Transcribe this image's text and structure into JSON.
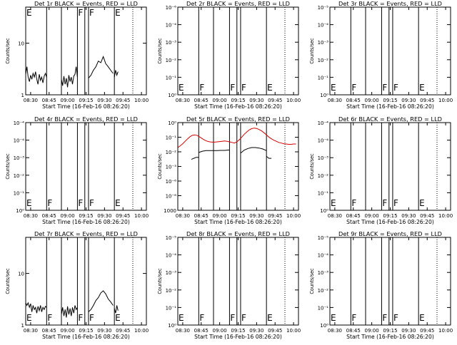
{
  "chart_data": [
    {
      "type": "line",
      "title": "Det 1r BLACK = Events, RED = LLD",
      "xlabel": "Start Time (16-Feb-16 08:26:20)",
      "ylabel": "Counts/sec",
      "xlim": [
        "08:26",
        "10:04"
      ],
      "x_ticks": [
        "08:30",
        "08:45",
        "09:00",
        "09:15",
        "09:30",
        "09:45",
        "10:00"
      ],
      "yscale": "log",
      "ylim": [
        1,
        50
      ],
      "y_ticks": [
        "1",
        "10"
      ],
      "vlines_solid": [
        "08:43",
        "08:55",
        "09:08",
        "09:14",
        "09:17",
        "09:38"
      ],
      "vlines_dotted": [
        "09:53"
      ],
      "markers": [
        {
          "label": "E",
          "x": "08:26"
        },
        {
          "label": "F",
          "x": "09:08"
        },
        {
          "label": "F",
          "x": "09:17"
        },
        {
          "label": "E",
          "x": "09:38"
        }
      ],
      "series": [
        {
          "color": "#000000",
          "x": [
            "08:26",
            "08:27",
            "08:28",
            "08:29",
            "08:30",
            "08:31",
            "08:32",
            "08:33",
            "08:34",
            "08:35",
            "08:36",
            "08:37",
            "08:38",
            "08:39",
            "08:40",
            "08:41",
            "08:42",
            "08:43"
          ],
          "y": [
            2.5,
            3.5,
            2.2,
            1.8,
            2.4,
            2,
            2.6,
            2.2,
            2.8,
            2,
            1.6,
            2.5,
            1.9,
            2.2,
            1.7,
            2.3,
            2.6,
            2.2
          ]
        },
        {
          "color": "#000000",
          "x": [
            "08:55",
            "08:56",
            "08:57",
            "08:58",
            "08:59",
            "09:00",
            "09:01",
            "09:02",
            "09:03",
            "09:04",
            "09:05",
            "09:06",
            "09:07",
            "09:08"
          ],
          "y": [
            2,
            1.5,
            2.3,
            1.6,
            2.1,
            1.4,
            2.4,
            1.8,
            2.2,
            1.6,
            2.3,
            2.5,
            3.5,
            2.2
          ]
        },
        {
          "color": "#000000",
          "x": [
            "09:17",
            "09:19",
            "09:21",
            "09:23",
            "09:25",
            "09:27",
            "09:29",
            "09:31",
            "09:33",
            "09:35",
            "09:37"
          ],
          "y": [
            2.1,
            2.4,
            3,
            3.5,
            4.5,
            4.2,
            5.5,
            4,
            3.5,
            3,
            2.6
          ]
        },
        {
          "color": "#000000",
          "x": [
            "09:38",
            "09:39",
            "09:40",
            "09:41"
          ],
          "y": [
            2.2,
            3,
            2.4,
            2.8
          ]
        }
      ]
    },
    {
      "type": "line",
      "title": "Det 2r BLACK = Events, RED = LLD",
      "xlabel": "Start Time (16-Feb-16 08:26:20)",
      "ylabel": "Counts/sec",
      "xlim": [
        "08:26",
        "10:04"
      ],
      "x_ticks": [
        "08:30",
        "08:45",
        "09:00",
        "09:15",
        "09:30",
        "09:45",
        "10:00"
      ],
      "yscale": "log",
      "ylim": [
        1,
        100000
      ],
      "y_ticks": [
        "10⁰",
        "10⁻¹",
        "10⁻²",
        "10⁻³",
        "10⁻⁴",
        "10⁻⁶"
      ],
      "vlines_solid": [
        "08:43",
        "08:55",
        "09:08",
        "09:14",
        "09:17",
        "09:38"
      ],
      "vlines_dotted": [
        "09:53"
      ],
      "markers": [
        {
          "label": "E",
          "x": "08:26"
        },
        {
          "label": "F",
          "x": "08:43"
        },
        {
          "label": "F",
          "x": "09:08"
        },
        {
          "label": "F",
          "x": "09:17"
        },
        {
          "label": "E",
          "x": "09:38"
        }
      ],
      "series": []
    },
    {
      "type": "line",
      "title": "Det 3r BLACK = Events, RED = LLD",
      "xlabel": "Start Time (16-Feb-16 08:26:20)",
      "ylabel": "Counts/sec",
      "xlim": [
        "08:26",
        "10:04"
      ],
      "x_ticks": [
        "08:30",
        "08:45",
        "09:00",
        "09:15",
        "09:30",
        "09:45",
        "10:00"
      ],
      "yscale": "log",
      "ylim": [
        1,
        100000
      ],
      "y_ticks": [
        "10⁰",
        "10⁻¹",
        "10⁻²",
        "10⁻³",
        "10⁻⁴",
        "10⁻⁵"
      ],
      "vlines_solid": [
        "08:43",
        "08:55",
        "09:08",
        "09:14",
        "09:17",
        "09:38"
      ],
      "vlines_dotted": [
        "09:53"
      ],
      "markers": [
        {
          "label": "E",
          "x": "08:26"
        },
        {
          "label": "F",
          "x": "08:43"
        },
        {
          "label": "F",
          "x": "09:08"
        },
        {
          "label": "F",
          "x": "09:17"
        },
        {
          "label": "E",
          "x": "09:38"
        }
      ],
      "series": []
    },
    {
      "type": "line",
      "title": "Det 4r BLACK = Events, RED = LLD",
      "xlabel": "Start Time (16-Feb-16 08:26:20)",
      "ylabel": "Counts/sec",
      "xlim": [
        "08:26",
        "10:04"
      ],
      "x_ticks": [
        "08:30",
        "08:45",
        "09:00",
        "09:15",
        "09:30",
        "09:45",
        "10:00"
      ],
      "yscale": "log",
      "ylim": [
        1,
        100000
      ],
      "y_ticks": [
        "10⁰",
        "10⁻¹",
        "10⁻²",
        "10⁻³",
        "10⁻⁴",
        "10⁻⁴"
      ],
      "vlines_solid": [
        "08:43",
        "08:55",
        "09:08",
        "09:14",
        "09:17",
        "09:38"
      ],
      "vlines_dotted": [
        "09:53"
      ],
      "markers": [
        {
          "label": "E",
          "x": "08:26"
        },
        {
          "label": "F",
          "x": "08:43"
        },
        {
          "label": "F",
          "x": "09:08"
        },
        {
          "label": "F",
          "x": "09:17"
        },
        {
          "label": "E",
          "x": "09:38"
        }
      ],
      "series": []
    },
    {
      "type": "line",
      "title": "Det 5r BLACK = Events, RED = LLD",
      "xlabel": "Start Time (16-Feb-16 08:26:20)",
      "ylabel": "Counts/sec",
      "xlim": [
        "08:26",
        "10:04"
      ],
      "x_ticks": [
        "08:30",
        "08:45",
        "09:00",
        "09:15",
        "09:30",
        "09:45",
        "10:00"
      ],
      "yscale": "log",
      "ylim": [
        1,
        1000
      ],
      "y_ticks": [
        "1000",
        "10⁻⁶",
        "10⁻⁶",
        "10⁻³",
        "10⁻²",
        "10⁻¹",
        "10⁰"
      ],
      "vlines_solid": [
        "08:43",
        "08:55",
        "09:08",
        "09:14",
        "09:17",
        "09:38"
      ],
      "vlines_dotted": [
        "09:53"
      ],
      "markers": [],
      "series": [
        {
          "color": "#d40000",
          "x": [
            "08:26",
            "08:28",
            "08:30",
            "08:32",
            "08:34",
            "08:36",
            "08:38",
            "08:40",
            "08:42",
            "08:44",
            "08:46",
            "08:48",
            "08:50",
            "08:52",
            "08:54",
            "08:56",
            "08:58",
            "09:00",
            "09:02",
            "09:04",
            "09:06",
            "09:08",
            "09:10",
            "09:12",
            "09:14",
            "09:16",
            "09:18",
            "09:20",
            "09:22",
            "09:24",
            "09:26",
            "09:28",
            "09:30",
            "09:32",
            "09:34",
            "09:36",
            "09:38",
            "09:40",
            "09:42",
            "09:44",
            "09:46",
            "09:48",
            "09:50",
            "09:52",
            "09:54",
            "09:56",
            "09:58",
            "10:00",
            "10:02"
          ],
          "y": [
            140,
            160,
            190,
            230,
            280,
            330,
            370,
            380,
            360,
            320,
            280,
            250,
            230,
            220,
            215,
            215,
            220,
            225,
            230,
            235,
            230,
            220,
            210,
            200,
            220,
            260,
            320,
            400,
            480,
            560,
            620,
            650,
            630,
            580,
            520,
            450,
            380,
            320,
            280,
            250,
            230,
            210,
            200,
            190,
            185,
            180,
            180,
            185,
            185
          ]
        },
        {
          "color": "#000000",
          "x": [
            "08:37",
            "08:39",
            "08:41",
            "08:43"
          ],
          "y": [
            55,
            60,
            65,
            65
          ]
        },
        {
          "color": "#000000",
          "x": [
            "08:43",
            "08:46",
            "08:49",
            "08:52",
            "08:55",
            "08:58",
            "09:01",
            "09:04",
            "09:07",
            "09:08"
          ],
          "y": [
            95,
            105,
            110,
            110,
            110,
            110,
            112,
            112,
            115,
            115
          ]
        },
        {
          "color": "#000000",
          "x": [
            "09:17",
            "09:20",
            "09:23",
            "09:26",
            "09:29",
            "09:32",
            "09:35",
            "09:38"
          ],
          "y": [
            90,
            115,
            130,
            140,
            140,
            135,
            125,
            110
          ]
        },
        {
          "color": "#000000",
          "x": [
            "09:38",
            "09:40",
            "09:42"
          ],
          "y": [
            70,
            60,
            60
          ]
        }
      ]
    },
    {
      "type": "line",
      "title": "Det 6r BLACK = Events, RED = LLD",
      "xlabel": "Start Time (16-Feb-16 08:26:20)",
      "ylabel": "Counts/sec",
      "xlim": [
        "08:26",
        "10:04"
      ],
      "x_ticks": [
        "08:30",
        "08:45",
        "09:00",
        "09:15",
        "09:30",
        "09:45",
        "10:00"
      ],
      "yscale": "log",
      "ylim": [
        1,
        100000
      ],
      "y_ticks": [
        "10⁰",
        "10⁻¹",
        "10⁻²",
        "10⁻³",
        "10⁻⁴",
        "10⁻⁴"
      ],
      "vlines_solid": [
        "08:43",
        "08:55",
        "09:08",
        "09:14",
        "09:17",
        "09:38"
      ],
      "vlines_dotted": [
        "09:53"
      ],
      "markers": [
        {
          "label": "E",
          "x": "08:26"
        },
        {
          "label": "F",
          "x": "08:43"
        },
        {
          "label": "F",
          "x": "09:08"
        },
        {
          "label": "F",
          "x": "09:17"
        },
        {
          "label": "E",
          "x": "09:38"
        }
      ],
      "series": []
    },
    {
      "type": "line",
      "title": "Det 7r BLACK = Events, RED = LLD",
      "xlabel": "Start Time (16-Feb-16 08:26:20)",
      "ylabel": "Counts/sec",
      "xlim": [
        "08:26",
        "10:04"
      ],
      "x_ticks": [
        "08:30",
        "08:45",
        "09:00",
        "09:15",
        "09:30",
        "09:45",
        "10:00"
      ],
      "yscale": "log",
      "ylim": [
        1,
        50
      ],
      "y_ticks": [
        "1",
        "10"
      ],
      "vlines_solid": [
        "08:43",
        "08:55",
        "09:08",
        "09:14",
        "09:17",
        "09:38"
      ],
      "vlines_dotted": [
        "09:53"
      ],
      "markers": [
        {
          "label": "E",
          "x": "08:26"
        },
        {
          "label": "F",
          "x": "08:43"
        },
        {
          "label": "F",
          "x": "09:08"
        },
        {
          "label": "F",
          "x": "09:17"
        },
        {
          "label": "E",
          "x": "09:38"
        }
      ],
      "series": [
        {
          "color": "#000000",
          "x": [
            "08:26",
            "08:27",
            "08:28",
            "08:29",
            "08:30",
            "08:31",
            "08:32",
            "08:33",
            "08:34",
            "08:35",
            "08:36",
            "08:37",
            "08:38",
            "08:39",
            "08:40",
            "08:41",
            "08:42",
            "08:43"
          ],
          "y": [
            2.7,
            2.4,
            2.7,
            2.2,
            2.6,
            1.8,
            2.4,
            2,
            2.2,
            1.7,
            2.3,
            1.9,
            2.4,
            1.8,
            2.2,
            2,
            2.3,
            2.2
          ]
        },
        {
          "color": "#000000",
          "x": [
            "08:55",
            "08:56",
            "08:57",
            "08:58",
            "08:59",
            "09:00",
            "09:01",
            "09:02",
            "09:03",
            "09:04",
            "09:05",
            "09:06",
            "09:07",
            "09:08"
          ],
          "y": [
            1.6,
            2.2,
            1.5,
            2,
            1.4,
            2.3,
            1.6,
            2.1,
            1.5,
            2.2,
            1.7,
            2.4,
            2,
            2.2
          ]
        },
        {
          "color": "#000000",
          "x": [
            "09:17",
            "09:19",
            "09:21",
            "09:23",
            "09:25",
            "09:27",
            "09:29",
            "09:31",
            "09:33",
            "09:35",
            "09:37"
          ],
          "y": [
            1.8,
            2,
            2.4,
            3,
            3.4,
            4.2,
            4.6,
            4,
            3.2,
            2.8,
            2.4
          ]
        },
        {
          "color": "#000000",
          "x": [
            "09:38",
            "09:39",
            "09:40",
            "09:41"
          ],
          "y": [
            2.1,
            1.7,
            2.4,
            1.9
          ]
        }
      ]
    },
    {
      "type": "line",
      "title": "Det 8r BLACK = Events, RED = LLD",
      "xlabel": "Start Time (16-Feb-16 08:26:20)",
      "ylabel": "Counts/sec",
      "xlim": [
        "08:26",
        "10:04"
      ],
      "x_ticks": [
        "08:30",
        "08:45",
        "09:00",
        "09:15",
        "09:30",
        "09:45",
        "10:00"
      ],
      "yscale": "log",
      "ylim": [
        1,
        100000
      ],
      "y_ticks": [
        "10⁰",
        "10⁻¹",
        "10⁻²",
        "10⁻³",
        "10⁻⁴",
        "10⁻⁵"
      ],
      "vlines_solid": [
        "08:43",
        "08:55",
        "09:08",
        "09:14",
        "09:17",
        "09:38"
      ],
      "vlines_dotted": [
        "09:53"
      ],
      "markers": [
        {
          "label": "E",
          "x": "08:26"
        },
        {
          "label": "F",
          "x": "08:43"
        },
        {
          "label": "F",
          "x": "09:08"
        },
        {
          "label": "F",
          "x": "09:17"
        },
        {
          "label": "E",
          "x": "09:38"
        }
      ],
      "series": []
    },
    {
      "type": "line",
      "title": "Det 9r BLACK = Events, RED = LLD",
      "xlabel": "Start Time (16-Feb-16 08:26:20)",
      "ylabel": "Counts/sec",
      "xlim": [
        "08:26",
        "10:04"
      ],
      "x_ticks": [
        "08:30",
        "08:45",
        "09:00",
        "09:15",
        "09:30",
        "09:45",
        "10:00"
      ],
      "yscale": "log",
      "ylim": [
        1,
        100000
      ],
      "y_ticks": [
        "10⁰",
        "10⁻¹",
        "10⁻²",
        "10⁻³",
        "10⁻⁴",
        "10⁻⁵"
      ],
      "vlines_solid": [
        "08:43",
        "08:55",
        "09:08",
        "09:14",
        "09:17",
        "09:38"
      ],
      "vlines_dotted": [
        "09:53"
      ],
      "markers": [
        {
          "label": "E",
          "x": "08:26"
        },
        {
          "label": "F",
          "x": "08:43"
        },
        {
          "label": "F",
          "x": "09:08"
        },
        {
          "label": "F",
          "x": "09:17"
        },
        {
          "label": "E",
          "x": "09:38"
        }
      ],
      "series": []
    }
  ]
}
